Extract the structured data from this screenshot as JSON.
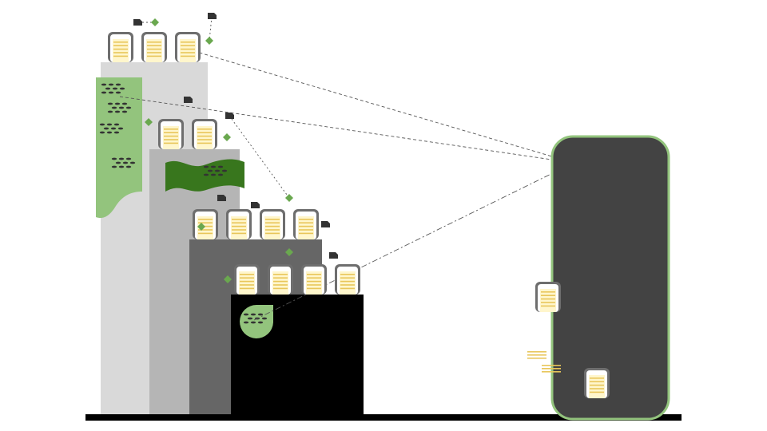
{
  "colors": {
    "background": "#ffffff",
    "tier1": "#d9d9d9",
    "tier2": "#b5b5b5",
    "tier3": "#666666",
    "tier4": "#000000",
    "ground": "#000000",
    "card_frame": "#6e6e6e",
    "card_paper": "#fff6cc",
    "card_lines": "#e8c65a",
    "light_green": "#93c47d",
    "dark_green": "#38761d",
    "diamond": "#6aa84f",
    "tag": "#333333",
    "phone_body": "#434343",
    "phone_border": "#93c47d",
    "connector": "#555555"
  },
  "icons": {
    "card": "document-card-icon",
    "tag": "tag-icon",
    "marker": "diamond-marker-icon",
    "leaf": "leaf-icon",
    "device": "device-icon"
  },
  "tiers": [
    {
      "name": "tier-1",
      "card_count": 3
    },
    {
      "name": "tier-2",
      "card_count": 2
    },
    {
      "name": "tier-3",
      "card_count": 4
    },
    {
      "name": "tier-4",
      "card_count": 4
    }
  ],
  "device": {
    "card_count": 2
  }
}
